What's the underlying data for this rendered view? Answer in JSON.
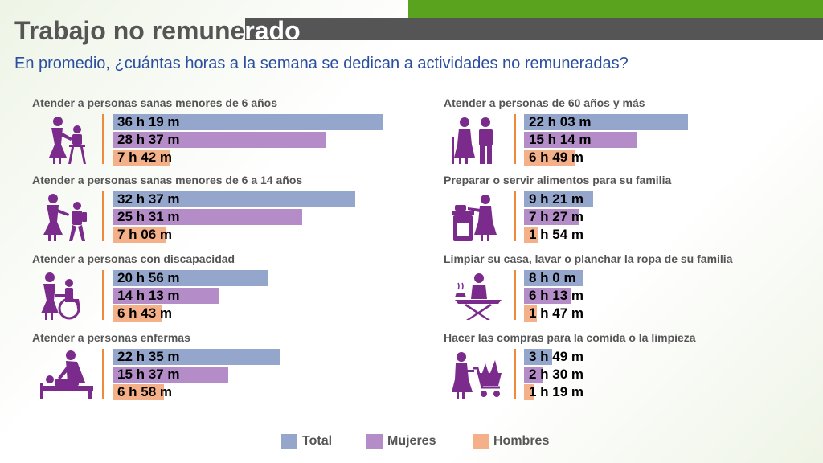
{
  "header": {
    "title": "Trabajo no remunerado",
    "title_part1": "Trabajo no remune",
    "title_part2": "rado",
    "subtitle": "En promedio, ¿cuántas horas a la semana se dedican a actividades no remuneradas?"
  },
  "colors": {
    "total": "#94a6cc",
    "mujeres": "#b48dc8",
    "hombres": "#f4b088",
    "accent_green": "#5aa31e",
    "accent_grey": "#555555",
    "separator": "#ef8a3c",
    "subtitle": "#2b4fa0",
    "icon": "#7a2b8c"
  },
  "legend": {
    "total": "Total",
    "mujeres": "Mujeres",
    "hombres": "Hombres"
  },
  "chart_data": {
    "type": "bar",
    "orientation": "horizontal",
    "unit": "hours per week",
    "x_max_hours": 40,
    "series_names": [
      "Total",
      "Mujeres",
      "Hombres"
    ],
    "panels": [
      {
        "title": "Atender a personas sanas menores de 6 años",
        "icon": "caregiver-child-highchair-icon",
        "total": {
          "label": "36 h 19 m",
          "hours": 36.32
        },
        "mujeres": {
          "label": "28 h 37 m",
          "hours": 28.62
        },
        "hombres": {
          "label": "7 h 42 m",
          "hours": 7.7
        }
      },
      {
        "title": "Atender a personas sanas menores de 6 a 14 años",
        "icon": "caregiver-schoolchild-icon",
        "total": {
          "label": "32 h 37 m",
          "hours": 32.62
        },
        "mujeres": {
          "label": "25 h 31 m",
          "hours": 25.52
        },
        "hombres": {
          "label": "7 h 06 m",
          "hours": 7.1
        }
      },
      {
        "title": "Atender a personas con discapacidad",
        "icon": "wheelchair-care-icon",
        "total": {
          "label": "20 h 56 m",
          "hours": 20.93
        },
        "mujeres": {
          "label": "14 h 13 m",
          "hours": 14.22
        },
        "hombres": {
          "label": "6 h 43 m",
          "hours": 6.72
        }
      },
      {
        "title": "Atender a personas enfermas",
        "icon": "sick-bed-care-icon",
        "total": {
          "label": "22 h 35 m",
          "hours": 22.58
        },
        "mujeres": {
          "label": "15 h 37 m",
          "hours": 15.62
        },
        "hombres": {
          "label": "6 h 58 m",
          "hours": 6.97
        }
      },
      {
        "title": "Atender a personas de 60 años y más",
        "icon": "elderly-couple-icon",
        "total": {
          "label": "22 h 03 m",
          "hours": 22.05
        },
        "mujeres": {
          "label": "15 h 14 m",
          "hours": 15.23
        },
        "hombres": {
          "label": "6 h 49 m",
          "hours": 6.82
        }
      },
      {
        "title": "Preparar o servir alimentos para su familia",
        "icon": "cooking-stove-icon",
        "total": {
          "label": "9 h 21 m",
          "hours": 9.35
        },
        "mujeres": {
          "label": "7 h 27 m",
          "hours": 7.45
        },
        "hombres": {
          "label": "1 h 54 m",
          "hours": 1.9
        }
      },
      {
        "title": "Limpiar su casa, lavar o planchar la ropa de su familia",
        "icon": "ironing-board-icon",
        "total": {
          "label": "8 h 0 m",
          "hours": 8.0
        },
        "mujeres": {
          "label": "6 h 13 m",
          "hours": 6.22
        },
        "hombres": {
          "label": "1 h 47 m",
          "hours": 1.78
        }
      },
      {
        "title": "Hacer las compras para la comida o la limpieza",
        "icon": "shopping-cart-icon",
        "total": {
          "label": "3 h 49 m",
          "hours": 3.82
        },
        "mujeres": {
          "label": "2 h 30 m",
          "hours": 2.5
        },
        "hombres": {
          "label": "1 h 19 m",
          "hours": 1.32
        }
      }
    ]
  }
}
